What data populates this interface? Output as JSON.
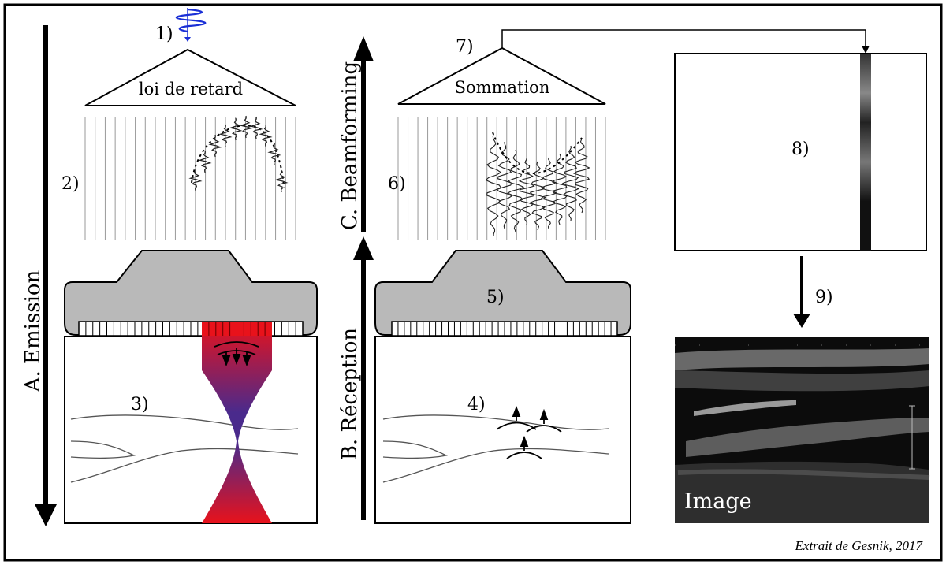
{
  "labels": {
    "emission": "A. Emission",
    "reception": "B. Réception",
    "beamforming": "C. Beamforming",
    "delay_law": "loi de retard",
    "summation": "Sommation",
    "image": "Image",
    "credit": "Extrait de Gesnik, 2017"
  },
  "steps": {
    "s1": "1)",
    "s2": "2)",
    "s3": "3)",
    "s4": "4)",
    "s5": "5)",
    "s6": "6)",
    "s7": "7)",
    "s8": "8)",
    "s9": "9)"
  },
  "colors": {
    "beam_red": "#e8121b",
    "beam_purple": "#4a2a8c",
    "pulse_blue": "#1a2fd6",
    "probe_gray": "#b9b9b9"
  }
}
